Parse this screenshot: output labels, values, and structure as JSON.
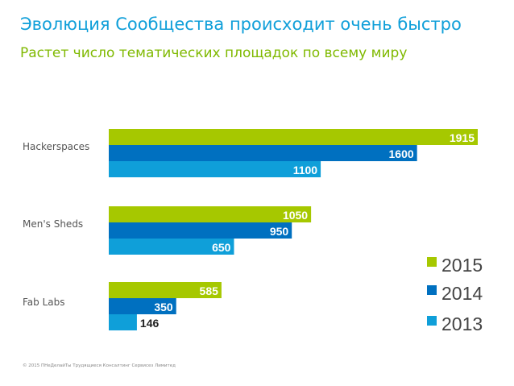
{
  "header": {
    "title": "Эволюция Сообщества происходит очень быстро",
    "subtitle": "Растет число тематических площадок по всему миру"
  },
  "footer": {
    "copyright": "© 2015 ПНеДелайТы Трудящиеся Консалтинг Сервисез Лимитед"
  },
  "chart_data": {
    "type": "bar",
    "orientation": "horizontal",
    "title": "",
    "categories": [
      "Hackerspaces",
      "Men's Sheds",
      "Fab Labs"
    ],
    "series": [
      {
        "name": "2015",
        "color": "#a6c800",
        "values": [
          1915,
          1050,
          585
        ]
      },
      {
        "name": "2014",
        "color": "#0070c0",
        "values": [
          1600,
          950,
          350
        ]
      },
      {
        "name": "2013",
        "color": "#0f9fd9",
        "values": [
          1100,
          650,
          146
        ]
      }
    ],
    "xlim": [
      0,
      1915
    ],
    "grid": false,
    "legend": "bottom-right",
    "legend_order": [
      "2015",
      "2014",
      "2013"
    ]
  }
}
